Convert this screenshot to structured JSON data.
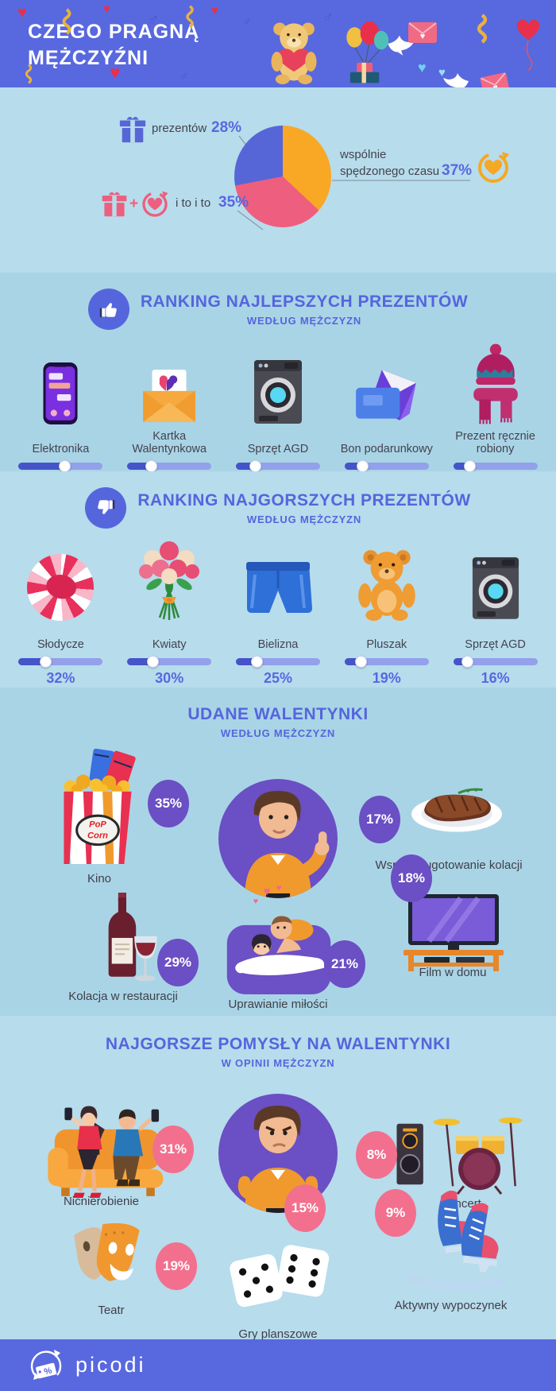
{
  "colors": {
    "header_bg": "#5868df",
    "section_bg_light": "#b7dcec",
    "section_bg_dark": "#a9d4e6",
    "accent_blue": "#5565dd",
    "pct_blue": "#5868e0",
    "slider_fill": "#4554c8",
    "slider_track": "#93a0ea",
    "bubble_purple": "#6b4fc4",
    "bubble_pink": "#f2708e",
    "pie_orange": "#f8a825",
    "pie_pink": "#ee5e7e",
    "pie_blue": "#5766d6"
  },
  "header": {
    "title_line1": "CZEGO PRAGNĄ",
    "title_line2": "MĘŻCZYŹNI"
  },
  "pie_labels": {
    "gifts_text": "prezentów",
    "gifts_pct": "28%",
    "time_line1": "wspólnie",
    "time_line2": "spędzonego czasu",
    "time_pct": "37%",
    "both_plus": "+",
    "both_text": "i to i to",
    "both_pct": "35%"
  },
  "best": {
    "title": "RANKING NAJLEPSZYCH PREZENTÓW",
    "subtitle": "WEDŁUG MĘŻCZYZN",
    "items": [
      {
        "label": "Elektronika",
        "pct": "54%",
        "value": 54,
        "icon": "smartphone-icon"
      },
      {
        "label": "Kartka Walentynkowa",
        "pct": "28%",
        "value": 28,
        "icon": "valentine-card-icon"
      },
      {
        "label": "Sprzęt AGD",
        "pct": "23%",
        "value": 23,
        "icon": "washing-machine-icon"
      },
      {
        "label": "Bon podarunkowy",
        "pct": "21%",
        "value": 21,
        "icon": "gift-card-icon"
      },
      {
        "label": "Prezent ręcznie robiony",
        "pct": "19%",
        "value": 19,
        "icon": "knitted-hat-scarf-icon"
      }
    ]
  },
  "worst": {
    "title": "RANKING NAJGORSZYCH PREZENTÓW",
    "subtitle": "WEDŁUG MĘŻCZYZN",
    "items": [
      {
        "label": "Słodycze",
        "pct": "32%",
        "value": 32,
        "icon": "candy-icon"
      },
      {
        "label": "Kwiaty",
        "pct": "30%",
        "value": 30,
        "icon": "flower-bouquet-icon"
      },
      {
        "label": "Bielizna",
        "pct": "25%",
        "value": 25,
        "icon": "boxers-icon"
      },
      {
        "label": "Pluszak",
        "pct": "19%",
        "value": 19,
        "icon": "teddy-bear-icon"
      },
      {
        "label": "Sprzęt AGD",
        "pct": "16%",
        "value": 16,
        "icon": "washing-machine-icon"
      }
    ]
  },
  "good": {
    "title": "UDANE WALENTYNKI",
    "subtitle": "WEDŁUG MĘŻCZYZN",
    "popcorn_line1": "PoP",
    "popcorn_line2": "Corn",
    "items": [
      {
        "label": "Kino",
        "pct": "35%",
        "icon": "popcorn-icon"
      },
      {
        "label": "Wspólne ugotowanie kolacji",
        "pct": "17%",
        "icon": "steak-icon"
      },
      {
        "label": "Kolacja w restauracji",
        "pct": "29%",
        "icon": "wine-icon"
      },
      {
        "label": "Uprawianie miłości",
        "pct": "21%",
        "icon": "couple-in-bed-icon"
      },
      {
        "label": "Film w domu",
        "pct": "18%",
        "icon": "tv-icon"
      }
    ]
  },
  "bad": {
    "title": "NAJGORSZE POMYSŁY NA WALENTYNKI",
    "subtitle": "W OPINII MĘŻCZYZN",
    "items": [
      {
        "label": "Nicnierobienie",
        "pct": "31%",
        "icon": "couple-on-couch-icon"
      },
      {
        "label": "Koncert",
        "pct": "8%",
        "icon": "drum-kit-icon"
      },
      {
        "label": "Teatr",
        "pct": "19%",
        "icon": "theater-masks-icon"
      },
      {
        "label": "Gry planszowe",
        "pct": "15%",
        "icon": "dice-icon"
      },
      {
        "label": "Aktywny wypoczynek",
        "pct": "9%",
        "icon": "ice-skates-icon"
      }
    ]
  },
  "footer": {
    "brand": "picodi",
    "logo_percent": "%"
  },
  "chart_data": [
    {
      "type": "pie",
      "title": "Czego pragną mężczyźni",
      "categories": [
        "wspólnie spędzonego czasu",
        "i to i to",
        "prezentów"
      ],
      "values": [
        37,
        35,
        28
      ],
      "colors": [
        "#f8a825",
        "#ee5e7e",
        "#5766d6"
      ],
      "start_angle_deg": 0,
      "direction": "clockwise",
      "legend_position": "around"
    },
    {
      "type": "bar",
      "title": "Ranking najlepszych prezentów (według mężczyzn)",
      "categories": [
        "Elektronika",
        "Kartka Walentynkowa",
        "Sprzęt AGD",
        "Bon podarunkowy",
        "Prezent ręcznie robiony"
      ],
      "values": [
        54,
        28,
        23,
        21,
        19
      ],
      "unit": "%",
      "ylim": [
        0,
        100
      ]
    },
    {
      "type": "bar",
      "title": "Ranking najgorszych prezentów (według mężczyzn)",
      "categories": [
        "Słodycze",
        "Kwiaty",
        "Bielizna",
        "Pluszak",
        "Sprzęt AGD"
      ],
      "values": [
        32,
        30,
        25,
        19,
        16
      ],
      "unit": "%",
      "ylim": [
        0,
        100
      ]
    },
    {
      "type": "bar",
      "title": "Udane walentynki (według mężczyzn)",
      "categories": [
        "Kino",
        "Kolacja w restauracji",
        "Uprawianie miłości",
        "Film w domu",
        "Wspólne ugotowanie kolacji"
      ],
      "values": [
        35,
        29,
        21,
        18,
        17
      ],
      "unit": "%",
      "ylim": [
        0,
        100
      ]
    },
    {
      "type": "bar",
      "title": "Najgorsze pomysły na walentynki (w opinii mężczyzn)",
      "categories": [
        "Nicnierobienie",
        "Teatr",
        "Gry planszowe",
        "Aktywny wypoczynek",
        "Koncert"
      ],
      "values": [
        31,
        19,
        15,
        9,
        8
      ],
      "unit": "%",
      "ylim": [
        0,
        100
      ]
    }
  ]
}
